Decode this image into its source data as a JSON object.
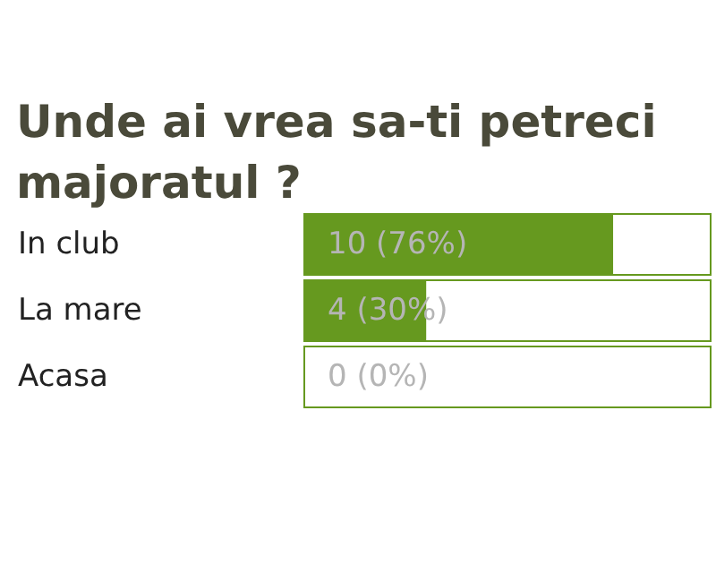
{
  "chart_data": {
    "type": "bar",
    "orientation": "horizontal",
    "title": "Unde ai vrea sa-ti petreci majoratul ?",
    "categories": [
      "In club",
      "La mare",
      "Acasa"
    ],
    "series": [
      {
        "color": "#66991f",
        "values": [
          76,
          30,
          0
        ],
        "value_labels": [
          "10 (76%)",
          "4 (30%)",
          "0 (0%)"
        ]
      }
    ],
    "xlim": [
      0,
      100
    ],
    "tick_labels": "y"
  }
}
